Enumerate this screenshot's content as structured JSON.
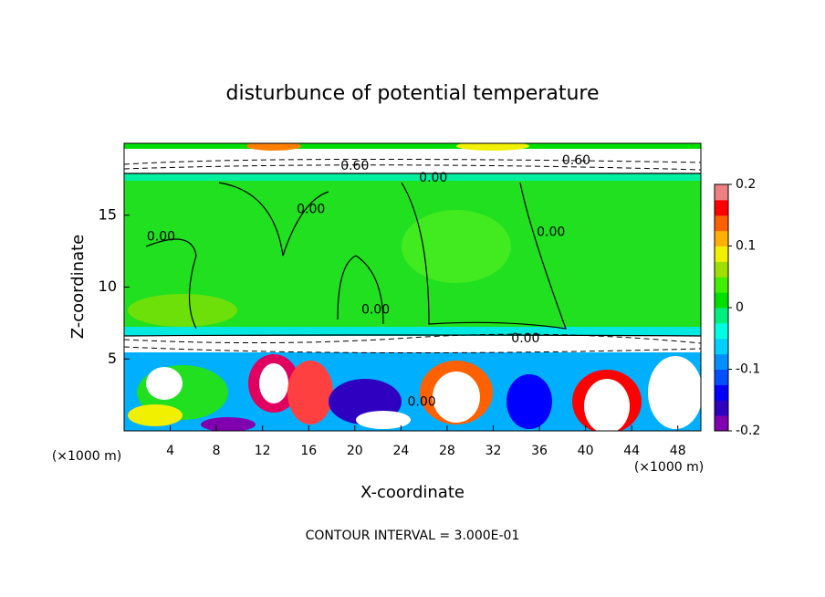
{
  "chart_data": {
    "type": "contour",
    "title": "disturbunce of potential temperature",
    "xlabel": "X-coordinate",
    "ylabel": "Z-coordinate",
    "x_unit": "(×1000 m)",
    "footer": "CONTOUR INTERVAL = 3.000E-01",
    "xlim": [
      0,
      50
    ],
    "xticks": [
      4,
      8,
      12,
      16,
      20,
      24,
      28,
      32,
      36,
      40,
      44,
      48
    ],
    "ylim": [
      0,
      20
    ],
    "yticks": [
      5,
      10,
      15
    ],
    "colorbar": {
      "clim": [
        -0.2,
        0.2
      ],
      "ticks": [
        0.2,
        0.1,
        0,
        -0.1,
        -0.2
      ],
      "colors": [
        "#8000b0",
        "#3000c0",
        "#0000ff",
        "#0050ff",
        "#0090ff",
        "#00d0ff",
        "#00ffe0",
        "#00f080",
        "#00e000",
        "#40f000",
        "#a0e000",
        "#f0f000",
        "#ffb000",
        "#ff6000",
        "#ff0000",
        "#f08080"
      ]
    },
    "contour_labels": [
      {
        "text": "0.00",
        "x": 26.8,
        "y": 17.6
      },
      {
        "text": "0.60",
        "x": 39.2,
        "y": 18.8
      },
      {
        "text": "0.60",
        "x": 20.0,
        "y": 18.4
      },
      {
        "text": "0.00",
        "x": 3.2,
        "y": 13.5
      },
      {
        "text": "0.00",
        "x": 16.2,
        "y": 15.4
      },
      {
        "text": "0.00",
        "x": 37.0,
        "y": 13.8
      },
      {
        "text": "0.00",
        "x": 21.8,
        "y": 8.4
      },
      {
        "text": "0.00",
        "x": 34.8,
        "y": 6.4
      },
      {
        "text": "0.00",
        "x": 25.8,
        "y": 2.0
      }
    ]
  }
}
